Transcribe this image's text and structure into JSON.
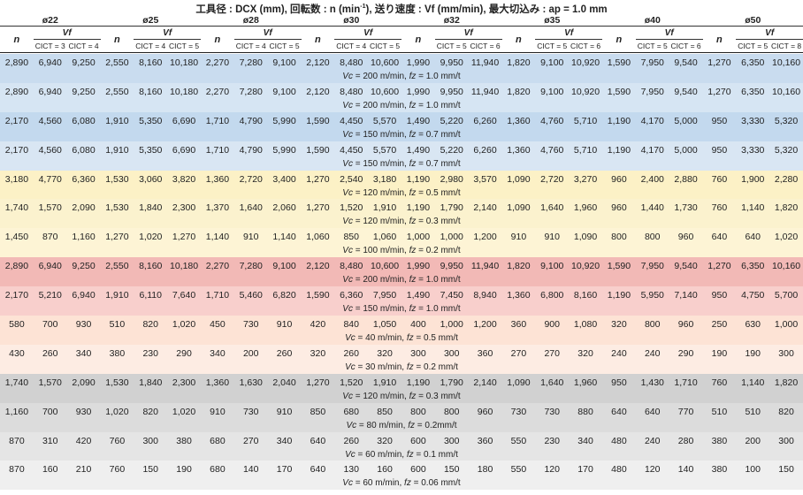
{
  "title": {
    "part1": "工具径 : DCX (mm), 回転数 : n (min",
    "sup": "-1",
    "part2": "), 送り速度 : Vf (mm/min), 最大切込み : ap = 1.0 mm"
  },
  "diameters": [
    "ø22",
    "ø25",
    "ø28",
    "ø30",
    "ø32",
    "ø35",
    "ø40",
    "ø50"
  ],
  "col_n_label": "n",
  "col_vf_label": "Vf",
  "cict_pairs": [
    [
      "CICT = 3",
      "CICT = 4"
    ],
    [
      "CICT = 4",
      "CICT = 5"
    ],
    [
      "CICT = 4",
      "CICT = 5"
    ],
    [
      "CICT = 4",
      "CICT = 5"
    ],
    [
      "CICT = 5",
      "CICT = 6"
    ],
    [
      "CICT = 5",
      "CICT = 6"
    ],
    [
      "CICT = 5",
      "CICT = 6"
    ],
    [
      "CICT = 5",
      "CICT = 8"
    ]
  ],
  "row_colors": [
    "#c9dcef",
    "#d6e5f3",
    "#c3d9ee",
    "#d9e6f3",
    "#fcf1c6",
    "#fbf2ce",
    "#fdf4d5",
    "#f2b9b6",
    "#f8cfcc",
    "#fde3d5",
    "#fdece3",
    "#d1d1d1",
    "#dcdcdc",
    "#e5e5e5",
    "#efefef"
  ],
  "rows": [
    {
      "values": [
        "2,890",
        "6,940",
        "9,250",
        "2,550",
        "8,160",
        "10,180",
        "2,270",
        "7,280",
        "9,100",
        "2,120",
        "8,480",
        "10,600",
        "1,990",
        "9,950",
        "11,940",
        "1,820",
        "9,100",
        "10,920",
        "1,590",
        "7,950",
        "9,540",
        "1,270",
        "6,350",
        "10,160"
      ],
      "cond": {
        "vc": "Vc",
        "vc_val": " = 200 m/min, ",
        "fz": "fz",
        "fz_val": " = 1.0 mm/t"
      }
    },
    {
      "values": [
        "2,890",
        "6,940",
        "9,250",
        "2,550",
        "8,160",
        "10,180",
        "2,270",
        "7,280",
        "9,100",
        "2,120",
        "8,480",
        "10,600",
        "1,990",
        "9,950",
        "11,940",
        "1,820",
        "9,100",
        "10,920",
        "1,590",
        "7,950",
        "9,540",
        "1,270",
        "6,350",
        "10,160"
      ],
      "cond": {
        "vc": "Vc",
        "vc_val": " = 200 m/min, ",
        "fz": "fz",
        "fz_val": " = 1.0 mm/t"
      }
    },
    {
      "values": [
        "2,170",
        "4,560",
        "6,080",
        "1,910",
        "5,350",
        "6,690",
        "1,710",
        "4,790",
        "5,990",
        "1,590",
        "4,450",
        "5,570",
        "1,490",
        "5,220",
        "6,260",
        "1,360",
        "4,760",
        "5,710",
        "1,190",
        "4,170",
        "5,000",
        "950",
        "3,330",
        "5,320"
      ],
      "cond": {
        "vc": "Vc",
        "vc_val": " = 150 m/min, ",
        "fz": "fz",
        "fz_val": " = 0.7 mm/t"
      }
    },
    {
      "values": [
        "2,170",
        "4,560",
        "6,080",
        "1,910",
        "5,350",
        "6,690",
        "1,710",
        "4,790",
        "5,990",
        "1,590",
        "4,450",
        "5,570",
        "1,490",
        "5,220",
        "6,260",
        "1,360",
        "4,760",
        "5,710",
        "1,190",
        "4,170",
        "5,000",
        "950",
        "3,330",
        "5,320"
      ],
      "cond": {
        "vc": "Vc",
        "vc_val": " = 150 m/min, ",
        "fz": "fz",
        "fz_val": " = 0.7 mm/t"
      }
    },
    {
      "values": [
        "3,180",
        "4,770",
        "6,360",
        "1,530",
        "3,060",
        "3,820",
        "1,360",
        "2,720",
        "3,400",
        "1,270",
        "2,540",
        "3,180",
        "1,190",
        "2,980",
        "3,570",
        "1,090",
        "2,720",
        "3,270",
        "960",
        "2,400",
        "2,880",
        "760",
        "1,900",
        "2,280"
      ],
      "cond": {
        "vc": "Vc",
        "vc_val": " = 120 m/min, ",
        "fz": "fz",
        "fz_val": " = 0.5 mm/t"
      }
    },
    {
      "values": [
        "1,740",
        "1,570",
        "2,090",
        "1,530",
        "1,840",
        "2,300",
        "1,370",
        "1,640",
        "2,060",
        "1,270",
        "1,520",
        "1,910",
        "1,190",
        "1,790",
        "2,140",
        "1,090",
        "1,640",
        "1,960",
        "960",
        "1,440",
        "1,730",
        "760",
        "1,140",
        "1,820"
      ],
      "cond": {
        "vc": "Vc",
        "vc_val": " = 120 m/min, ",
        "fz": "fz",
        "fz_val": " = 0.3 mm/t"
      }
    },
    {
      "values": [
        "1,450",
        "870",
        "1,160",
        "1,270",
        "1,020",
        "1,270",
        "1,140",
        "910",
        "1,140",
        "1,060",
        "850",
        "1,060",
        "1,000",
        "1,000",
        "1,200",
        "910",
        "910",
        "1,090",
        "800",
        "800",
        "960",
        "640",
        "640",
        "1,020"
      ],
      "cond": {
        "vc": "Vc",
        "vc_val": " = 100 m/min, ",
        "fz": "fz",
        "fz_val": " = 0.2 mm/t"
      }
    },
    {
      "values": [
        "2,890",
        "6,940",
        "9,250",
        "2,550",
        "8,160",
        "10,180",
        "2,270",
        "7,280",
        "9,100",
        "2,120",
        "8,480",
        "10,600",
        "1,990",
        "9,950",
        "11,940",
        "1,820",
        "9,100",
        "10,920",
        "1,590",
        "7,950",
        "9,540",
        "1,270",
        "6,350",
        "10,160"
      ],
      "cond": {
        "vc": "Vc",
        "vc_val": " = 200 m/min, ",
        "fz": "fz",
        "fz_val": " = 1.0 mm/t"
      }
    },
    {
      "values": [
        "2,170",
        "5,210",
        "6,940",
        "1,910",
        "6,110",
        "7,640",
        "1,710",
        "5,460",
        "6,820",
        "1,590",
        "6,360",
        "7,950",
        "1,490",
        "7,450",
        "8,940",
        "1,360",
        "6,800",
        "8,160",
        "1,190",
        "5,950",
        "7,140",
        "950",
        "4,750",
        "5,700"
      ],
      "cond": {
        "vc": "Vc",
        "vc_val": " = 150 m/min, ",
        "fz": "fz",
        "fz_val": " = 1.0 mm/t"
      }
    },
    {
      "values": [
        "580",
        "700",
        "930",
        "510",
        "820",
        "1,020",
        "450",
        "730",
        "910",
        "420",
        "840",
        "1,050",
        "400",
        "1,000",
        "1,200",
        "360",
        "900",
        "1,080",
        "320",
        "800",
        "960",
        "250",
        "630",
        "1,000"
      ],
      "cond": {
        "vc": "Vc",
        "vc_val": " = 40 m/min, ",
        "fz": "fz",
        "fz_val": " = 0.5 mm/t"
      }
    },
    {
      "values": [
        "430",
        "260",
        "340",
        "380",
        "230",
        "290",
        "340",
        "200",
        "260",
        "320",
        "260",
        "320",
        "300",
        "300",
        "360",
        "270",
        "270",
        "320",
        "240",
        "240",
        "290",
        "190",
        "190",
        "300"
      ],
      "cond": {
        "vc": "Vc",
        "vc_val": " = 30 m/min, ",
        "fz": "fz",
        "fz_val": " = 0.2 mm/t"
      }
    },
    {
      "values": [
        "1,740",
        "1,570",
        "2,090",
        "1,530",
        "1,840",
        "2,300",
        "1,360",
        "1,630",
        "2,040",
        "1,270",
        "1,520",
        "1,910",
        "1,190",
        "1,790",
        "2,140",
        "1,090",
        "1,640",
        "1,960",
        "950",
        "1,430",
        "1,710",
        "760",
        "1,140",
        "1,820"
      ],
      "cond": {
        "vc": "Vc",
        "vc_val": " = 120 m/min, ",
        "fz": "fz",
        "fz_val": " = 0.3 mm/t"
      }
    },
    {
      "values": [
        "1,160",
        "700",
        "930",
        "1,020",
        "820",
        "1,020",
        "910",
        "730",
        "910",
        "850",
        "680",
        "850",
        "800",
        "800",
        "960",
        "730",
        "730",
        "880",
        "640",
        "640",
        "770",
        "510",
        "510",
        "820"
      ],
      "cond": {
        "vc": "Vc",
        "vc_val": " = 80 m/min, ",
        "fz": "fz",
        "fz_val": " = 0.2mm/t"
      }
    },
    {
      "values": [
        "870",
        "310",
        "420",
        "760",
        "300",
        "380",
        "680",
        "270",
        "340",
        "640",
        "260",
        "320",
        "600",
        "300",
        "360",
        "550",
        "230",
        "340",
        "480",
        "240",
        "280",
        "380",
        "200",
        "300"
      ],
      "cond": {
        "vc": "Vc",
        "vc_val": " = 60 m/min, ",
        "fz": "fz",
        "fz_val": " = 0.1 mm/t"
      }
    },
    {
      "values": [
        "870",
        "160",
        "210",
        "760",
        "150",
        "190",
        "680",
        "140",
        "170",
        "640",
        "130",
        "160",
        "600",
        "150",
        "180",
        "550",
        "120",
        "170",
        "480",
        "120",
        "140",
        "380",
        "100",
        "150"
      ],
      "cond": {
        "vc": "Vc",
        "vc_val": " = 60 m/min, ",
        "fz": "fz",
        "fz_val": " = 0.06 mm/t"
      }
    }
  ]
}
